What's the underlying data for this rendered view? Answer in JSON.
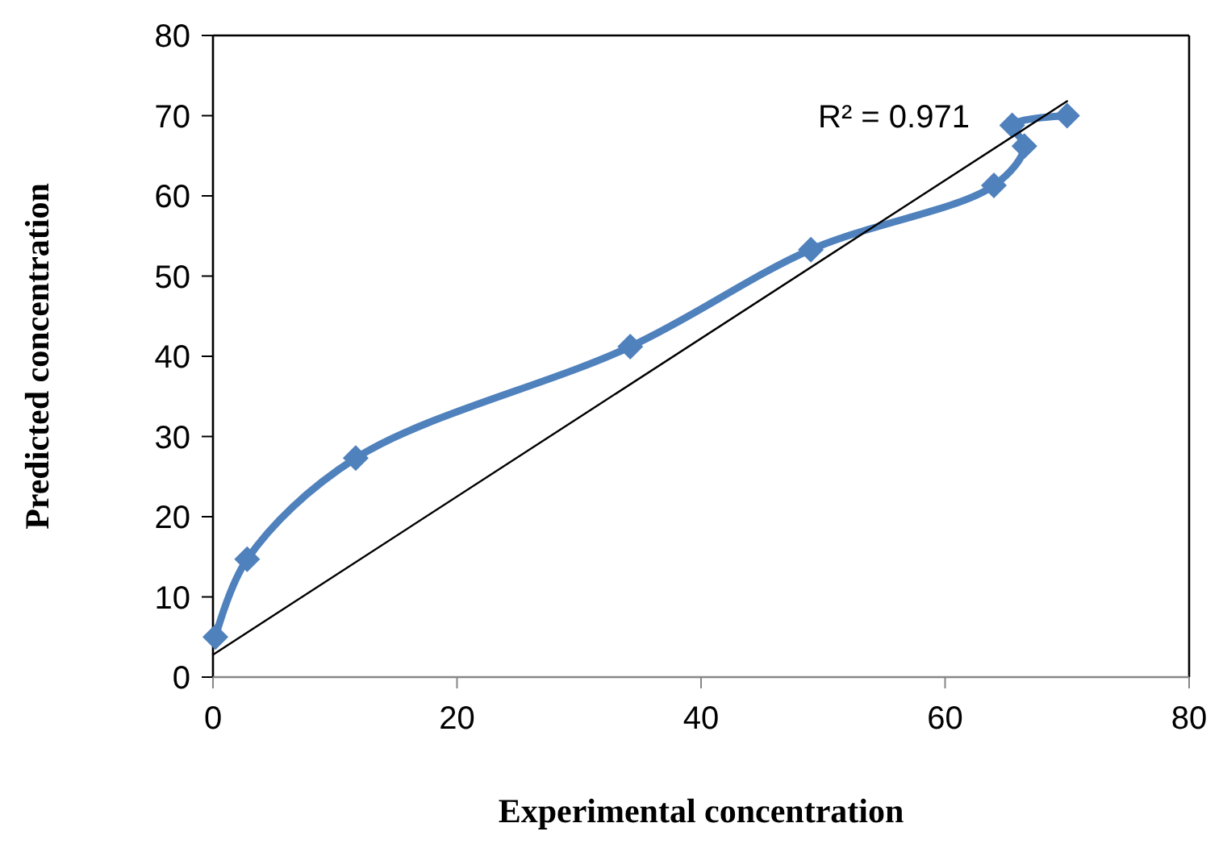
{
  "chart_data": {
    "type": "line",
    "xlabel": "Experimental concentration",
    "ylabel": "Predicted concentration",
    "xlim": [
      0,
      80
    ],
    "ylim": [
      0,
      80
    ],
    "xticks": [
      0,
      20,
      40,
      60,
      80
    ],
    "yticks": [
      0,
      10,
      20,
      30,
      40,
      50,
      60,
      70,
      80
    ],
    "grid": false,
    "annotations": [
      "R² = 0.971"
    ],
    "series": [
      {
        "color": "#4f81bd",
        "marker": "diamond",
        "x": [
          0.2,
          2.8,
          11.7,
          34.2,
          49,
          64,
          66.5,
          65.5,
          70
        ],
        "values": [
          5,
          14.7,
          27.3,
          41.2,
          53.3,
          61.3,
          66.2,
          68.8,
          70
        ]
      },
      {
        "color": "#000000",
        "marker": "none",
        "x": [
          0,
          70
        ],
        "values": [
          2.8,
          71.8
        ]
      }
    ]
  }
}
